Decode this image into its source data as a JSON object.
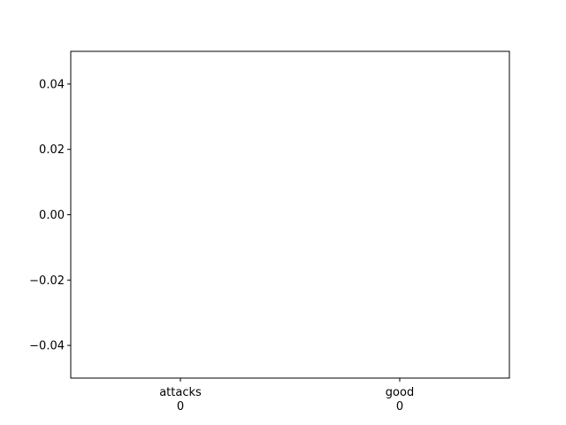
{
  "chart_data": {
    "type": "bar",
    "categories": [
      "attacks\n0",
      "good\n0"
    ],
    "values": [
      0,
      0
    ],
    "title": "",
    "xlabel": "",
    "ylabel": "",
    "ylim": [
      -0.05,
      0.05
    ],
    "yticks": [
      -0.04,
      -0.02,
      0.0,
      0.02,
      0.04
    ],
    "ytick_labels": [
      "−0.04",
      "−0.02",
      "0.00",
      "0.02",
      "0.04"
    ],
    "grid": false,
    "legend": "none",
    "colors": {
      "axes": "#000000",
      "background": "#ffffff",
      "bar": "#1f77b4"
    }
  }
}
